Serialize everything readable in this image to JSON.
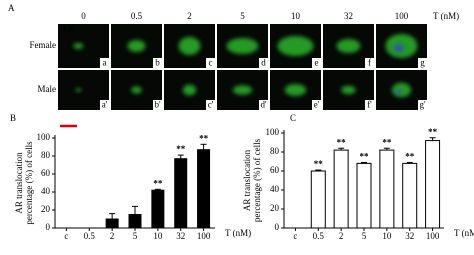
{
  "panel_a": {
    "label": "A",
    "marker": "AR",
    "unit": "T (nM)",
    "concentrations": [
      "0",
      "0.5",
      "2",
      "5",
      "10",
      "32",
      "100"
    ],
    "rows": [
      {
        "label": "Female",
        "panels": [
          "a",
          "b",
          "c",
          "d",
          "e",
          "f",
          "g"
        ]
      },
      {
        "label": "Male",
        "panels": [
          "a'",
          "b'",
          "c'",
          "d'",
          "e'",
          "f'",
          "g'"
        ]
      }
    ]
  },
  "chart_data": [
    {
      "type": "bar",
      "panel": "B",
      "categories": [
        "c",
        "0.5",
        "2",
        "5",
        "10",
        "32",
        "100"
      ],
      "values": [
        0,
        0,
        10,
        15,
        42,
        77,
        87
      ],
      "errors": [
        0,
        0,
        6,
        9,
        1,
        4,
        6
      ],
      "annotations": [
        null,
        null,
        null,
        null,
        "**",
        "**",
        "**"
      ],
      "color": "#000000",
      "ylabel": [
        "AR translocation",
        "percentage (%) of cells"
      ],
      "xlabel": "T (nM)",
      "ylim": [
        0,
        100
      ],
      "yticks": [
        0,
        20,
        40,
        60,
        80,
        100
      ]
    },
    {
      "type": "bar",
      "panel": "C",
      "categories": [
        "c",
        "0.5",
        "2",
        "5",
        "10",
        "32",
        "100"
      ],
      "values": [
        0,
        60,
        82,
        68,
        82,
        68,
        92
      ],
      "errors": [
        0,
        1,
        2,
        1,
        2,
        1,
        3
      ],
      "annotations": [
        null,
        "**",
        "**",
        "**",
        "**",
        "**",
        "**"
      ],
      "color": "#ffffff",
      "ylabel": [
        "AR translocation",
        "percentage (%) of cells"
      ],
      "xlabel": "T (nM)",
      "ylim": [
        0,
        100
      ],
      "yticks": [
        0,
        20,
        40,
        60,
        80,
        100
      ]
    }
  ]
}
